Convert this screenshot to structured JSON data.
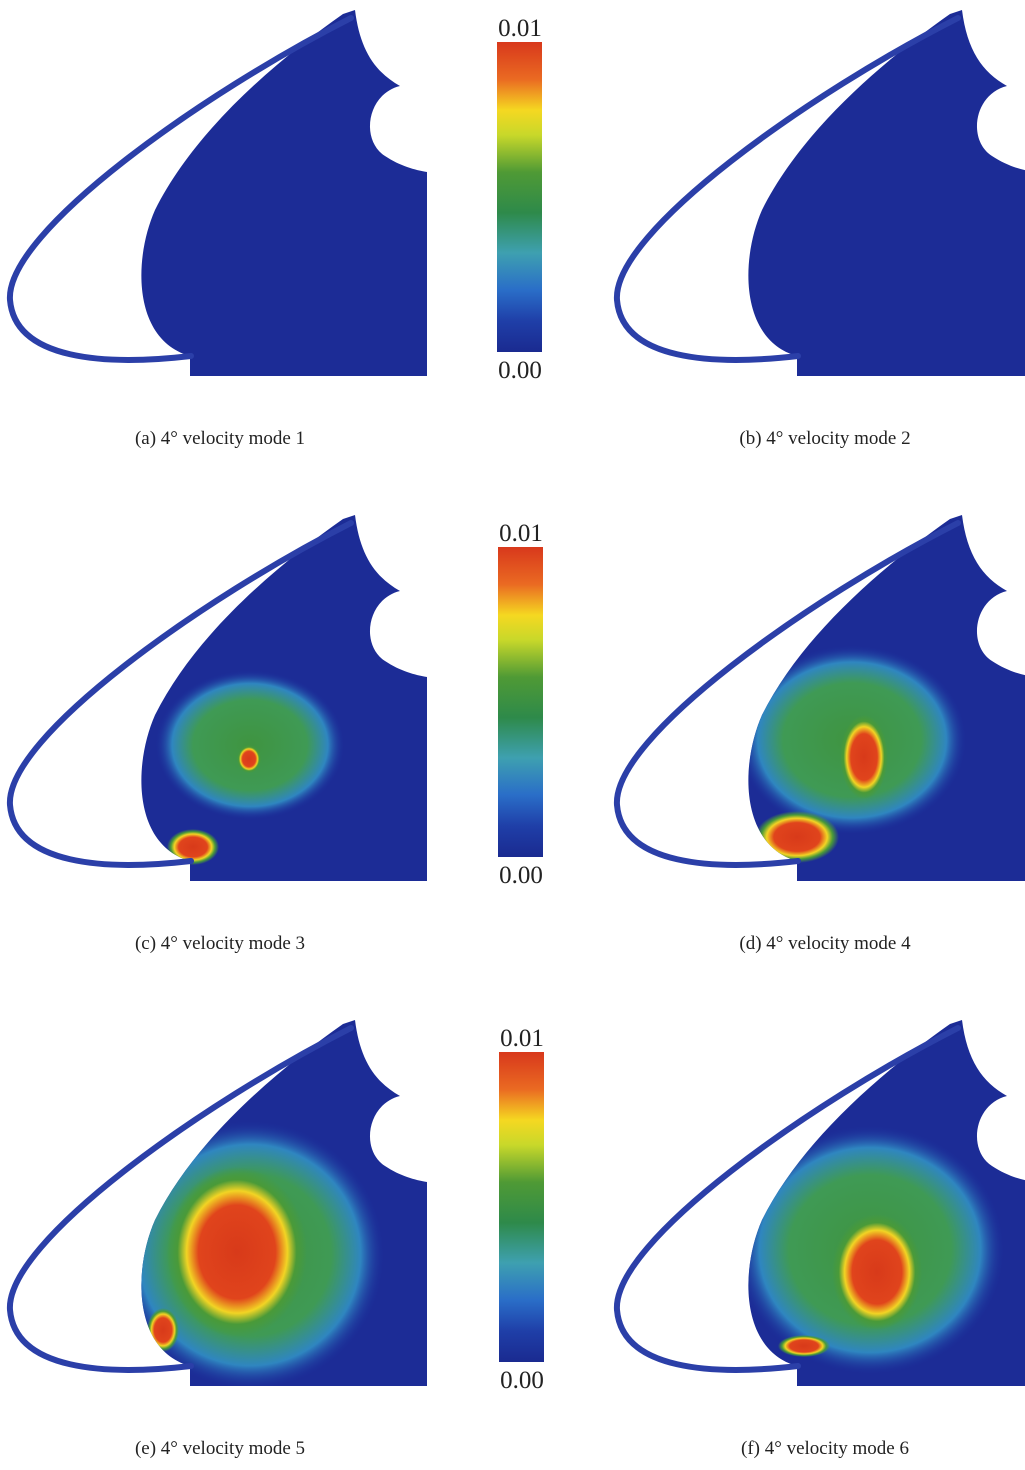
{
  "panels": [
    {
      "caption": "(a) 4° velocity mode 1"
    },
    {
      "caption": "(b) 4° velocity mode 2"
    },
    {
      "caption": "(c) 4° velocity mode 3"
    },
    {
      "caption": "(d) 4° velocity mode 4"
    },
    {
      "caption": "(e) 4° velocity mode 5"
    },
    {
      "caption": "(f) 4° velocity mode 6"
    }
  ],
  "colorbars": [
    {
      "max_label": "0.01",
      "min_label": "0.00"
    },
    {
      "max_label": "0.01",
      "min_label": "0.00"
    },
    {
      "max_label": "0.01",
      "min_label": "0.00"
    }
  ]
}
